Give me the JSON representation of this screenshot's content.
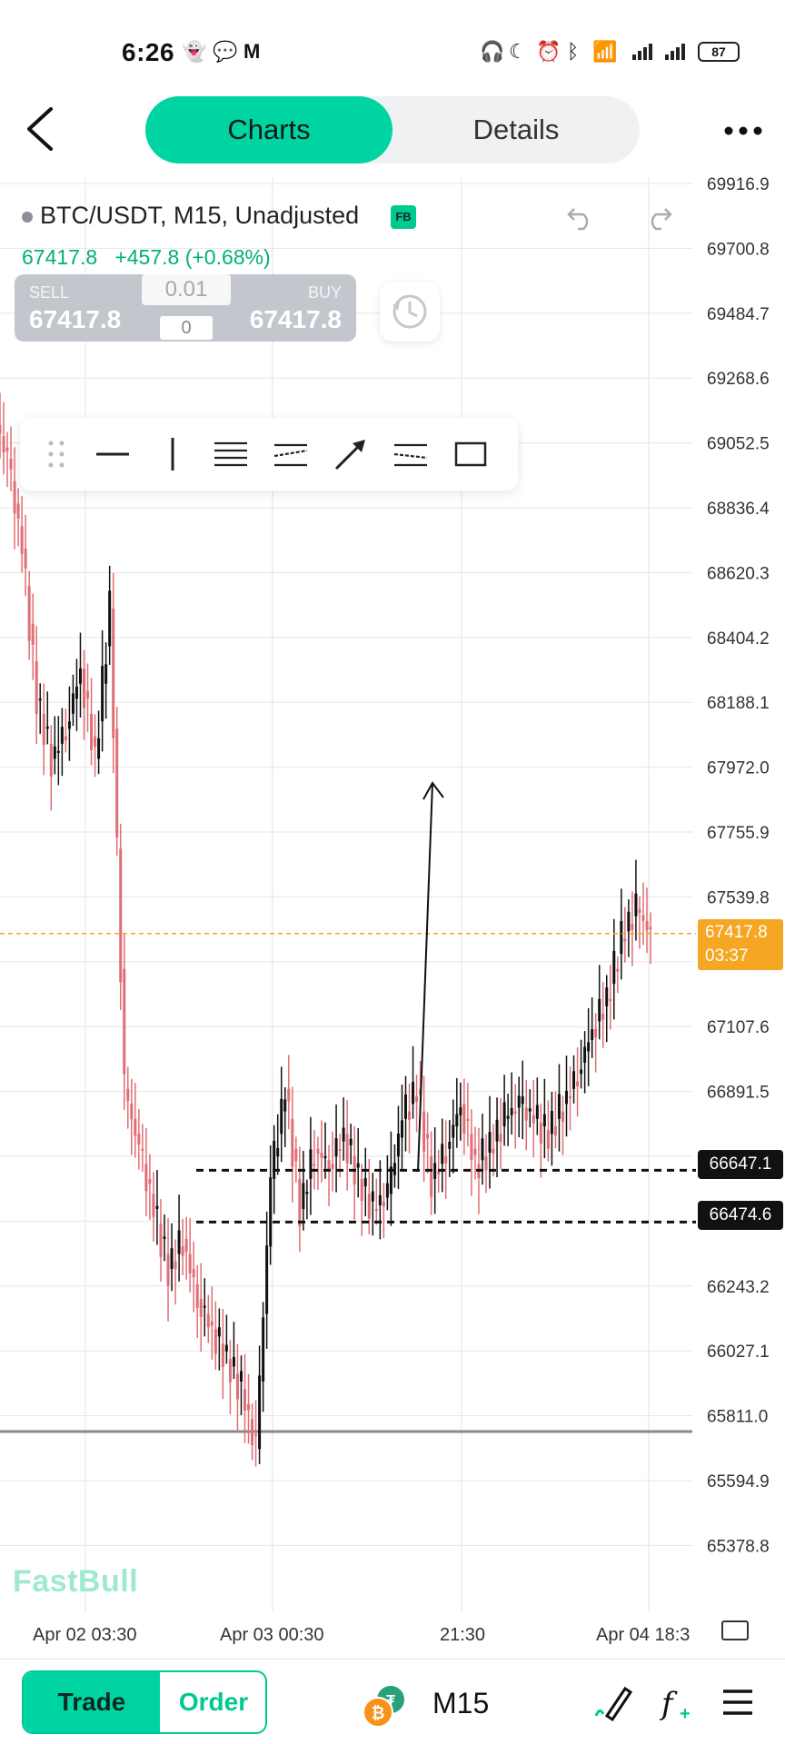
{
  "status_bar": {
    "time": "6:26",
    "battery": "87"
  },
  "header": {
    "tabs": [
      {
        "label": "Charts",
        "active": true
      },
      {
        "label": "Details",
        "active": false
      }
    ]
  },
  "symbol": {
    "name": "BTC/USDT, M15, Unadjusted",
    "badge": "FB",
    "last_price": "67417.8",
    "change": "+457.8 (+0.68%)"
  },
  "trade_box": {
    "sell_label": "SELL",
    "sell_price": "67417.8",
    "buy_label": "BUY",
    "buy_price": "67417.8",
    "lot_placeholder": "0.01",
    "lot_value": "0"
  },
  "price_axis": [
    "69916.9",
    "69700.8",
    "69484.7",
    "69268.6",
    "69052.5",
    "68836.4",
    "68620.3",
    "68404.2",
    "68188.1",
    "67972.0",
    "67755.9",
    "67539.8",
    "67107.6",
    "66891.5",
    "66243.2",
    "66027.1",
    "65811.0",
    "65594.9",
    "65378.8"
  ],
  "time_axis": [
    "Apr 02 03:30",
    "Apr 03 00:30",
    "21:30",
    "Apr 04 18:3"
  ],
  "last_price_tag": {
    "price": "67417.8",
    "countdown": "03:37"
  },
  "drawn_lines": [
    {
      "price": "66647.1"
    },
    {
      "price": "66474.6"
    }
  ],
  "watermark": "FastBull",
  "bottom_bar": {
    "trade": "Trade",
    "order": "Order",
    "timeframe": "M15"
  },
  "colors": {
    "accent": "#00d4a3",
    "up_candle": "#111111",
    "down_candle": "#e06e74",
    "last_price": "#f5a623"
  },
  "chart_data": {
    "type": "candlestick",
    "symbol": "BTC/USDT",
    "interval": "M15",
    "y_range": [
      65300,
      69950
    ],
    "x_ticks": [
      "Apr 02 03:30",
      "Apr 03 00:30",
      "21:30",
      "Apr 04 18:3"
    ],
    "approx_closes": [
      69000,
      68700,
      68200,
      68000,
      68100,
      68300,
      68000,
      68500,
      66900,
      66700,
      66500,
      66300,
      66400,
      66200,
      66100,
      66000,
      65900,
      65700,
      66600,
      66900,
      66500,
      66700,
      66650,
      66750,
      66600,
      66500,
      66550,
      66800,
      66900,
      66600,
      66700,
      66850,
      66650,
      66700,
      66800,
      66850,
      66800,
      66750,
      66850,
      66950,
      67100,
      67200,
      67400,
      67500,
      67417.8
    ]
  }
}
